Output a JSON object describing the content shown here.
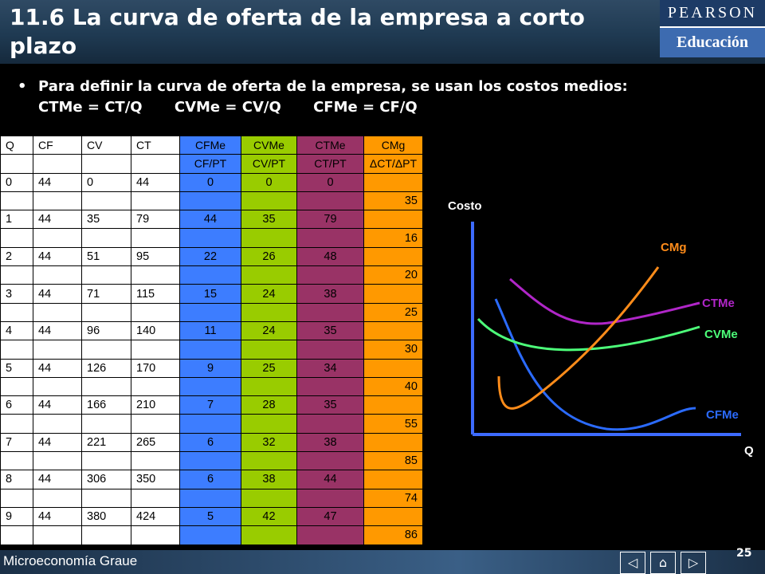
{
  "slide": {
    "title": "11.6 La curva de oferta de la empresa a corto plazo",
    "logo_top": "PEARSON",
    "logo_bottom": "Educación",
    "bullet_text": "Para definir la curva de oferta de la empresa, se usan los costos medios:",
    "formulas": [
      "CTMe = CT/Q",
      "CVMe = CV/Q",
      "CFMe = CF/Q"
    ],
    "footer_brand": "Microeconomía Graue",
    "page_number": "25"
  },
  "table": {
    "headers": [
      "Q",
      "CF",
      "CV",
      "CT",
      "CFMe",
      "CVMe",
      "CTMe",
      "CMg"
    ],
    "subheaders": [
      "CF/PT",
      "CV/PT",
      "CT/PT",
      "ΔCT/ΔPT"
    ],
    "rows": [
      {
        "q": "0",
        "cf": "44",
        "cv": "0",
        "ct": "44",
        "cfme": "0",
        "cvme": "0",
        "ctme": "0"
      },
      {
        "q": "1",
        "cf": "44",
        "cv": "35",
        "ct": "79",
        "cfme": "44",
        "cvme": "35",
        "ctme": "79"
      },
      {
        "q": "2",
        "cf": "44",
        "cv": "51",
        "ct": "95",
        "cfme": "22",
        "cvme": "26",
        "ctme": "48"
      },
      {
        "q": "3",
        "cf": "44",
        "cv": "71",
        "ct": "115",
        "cfme": "15",
        "cvme": "24",
        "ctme": "38"
      },
      {
        "q": "4",
        "cf": "44",
        "cv": "96",
        "ct": "140",
        "cfme": "11",
        "cvme": "24",
        "ctme": "35"
      },
      {
        "q": "5",
        "cf": "44",
        "cv": "126",
        "ct": "170",
        "cfme": "9",
        "cvme": "25",
        "ctme": "34"
      },
      {
        "q": "6",
        "cf": "44",
        "cv": "166",
        "ct": "210",
        "cfme": "7",
        "cvme": "28",
        "ctme": "35"
      },
      {
        "q": "7",
        "cf": "44",
        "cv": "221",
        "ct": "265",
        "cfme": "6",
        "cvme": "32",
        "ctme": "38"
      },
      {
        "q": "8",
        "cf": "44",
        "cv": "306",
        "ct": "350",
        "cfme": "6",
        "cvme": "38",
        "ctme": "44"
      },
      {
        "q": "9",
        "cf": "44",
        "cv": "380",
        "ct": "424",
        "cfme": "5",
        "cvme": "42",
        "ctme": "47"
      }
    ],
    "cmg": [
      "35",
      "16",
      "20",
      "25",
      "30",
      "40",
      "55",
      "85",
      "74",
      "86"
    ]
  },
  "chart": {
    "ylabel": "Costo",
    "xlabel": "Q",
    "curves": [
      {
        "name": "CMg",
        "color": "#ff8c1a"
      },
      {
        "name": "CTMe",
        "color": "#b026c8"
      },
      {
        "name": "CVMe",
        "color": "#4dff7a"
      },
      {
        "name": "CFMe",
        "color": "#2b6bff"
      }
    ]
  }
}
